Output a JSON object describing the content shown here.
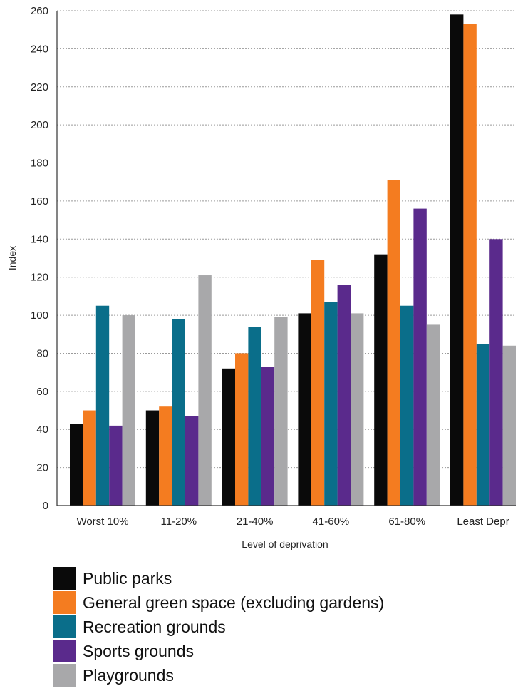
{
  "chart_data": {
    "type": "bar",
    "ylabel": "Index",
    "xlabel": "Level of deprivation",
    "ylim": [
      0,
      260
    ],
    "yticks": [
      0,
      20,
      40,
      60,
      80,
      100,
      120,
      140,
      160,
      180,
      200,
      220,
      240,
      260
    ],
    "grid": true,
    "legend_position": "bottom",
    "categories": [
      "Worst 10%",
      "11-20%",
      "21-40%",
      "41-60%",
      "61-80%",
      "Least Depr"
    ],
    "series": [
      {
        "name": "Public parks",
        "color": "#0a0a0a",
        "values": [
          43,
          50,
          72,
          101,
          132,
          258
        ]
      },
      {
        "name": "General green space (excluding gardens)",
        "color": "#f47c20",
        "values": [
          50,
          52,
          80,
          129,
          171,
          253
        ]
      },
      {
        "name": "Recreation grounds",
        "color": "#0a6e8a",
        "values": [
          105,
          98,
          94,
          107,
          105,
          85
        ]
      },
      {
        "name": "Sports grounds",
        "color": "#5a2a8c",
        "values": [
          42,
          47,
          73,
          116,
          156,
          140
        ]
      },
      {
        "name": "Playgrounds",
        "color": "#a8a8aa",
        "values": [
          100,
          121,
          99,
          101,
          95,
          84
        ]
      }
    ]
  }
}
